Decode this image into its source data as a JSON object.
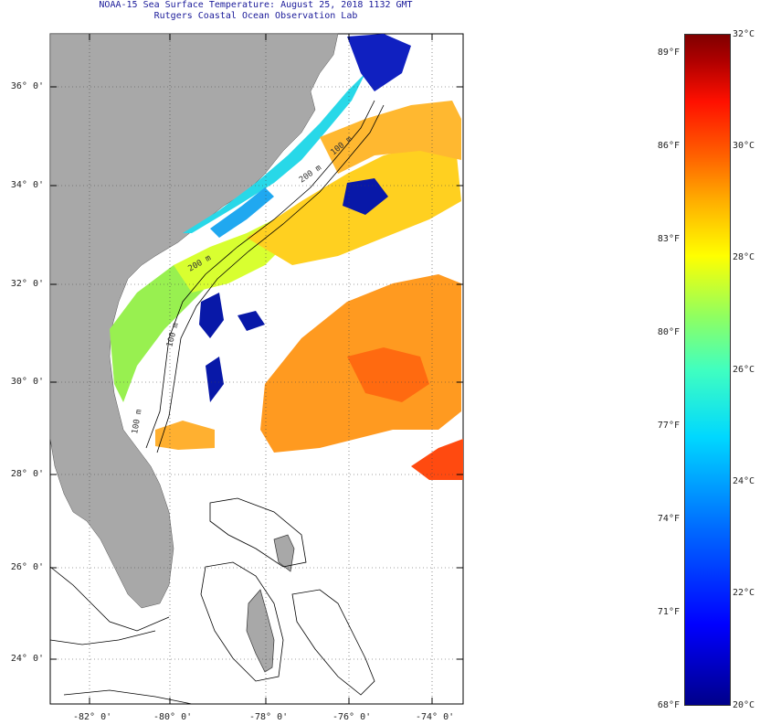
{
  "title_line1": "NOAA-15 Sea Surface Temperature:  August 25, 2018 1132 GMT",
  "title_line2": "Rutgers Coastal Ocean Observation Lab",
  "latitude_labels": [
    "36° 0'",
    "34° 0'",
    "32° 0'",
    "30° 0'",
    "28° 0'",
    "26° 0'",
    "24° 0'"
  ],
  "longitude_labels": [
    "-82° 0'",
    "-80° 0'",
    "-78° 0'",
    "-76° 0'",
    "-74° 0'"
  ],
  "isobath_labels": [
    "100 m",
    "200 m",
    "100 m",
    "200 m",
    "100 m"
  ],
  "colorbar": {
    "fahrenheit_labels": [
      "89°F",
      "86°F",
      "83°F",
      "80°F",
      "77°F",
      "74°F",
      "71°F",
      "68°F"
    ],
    "celsius_labels": [
      "32°C",
      "30°C",
      "28°C",
      "26°C",
      "24°C",
      "22°C",
      "20°C"
    ],
    "min_c": 20,
    "max_c": 32
  },
  "colors": {
    "land": "#a8a8a8",
    "warm_water": "#ff8c1a",
    "cool_water": "#2bd6e0",
    "cold_water": "#0000b0"
  }
}
